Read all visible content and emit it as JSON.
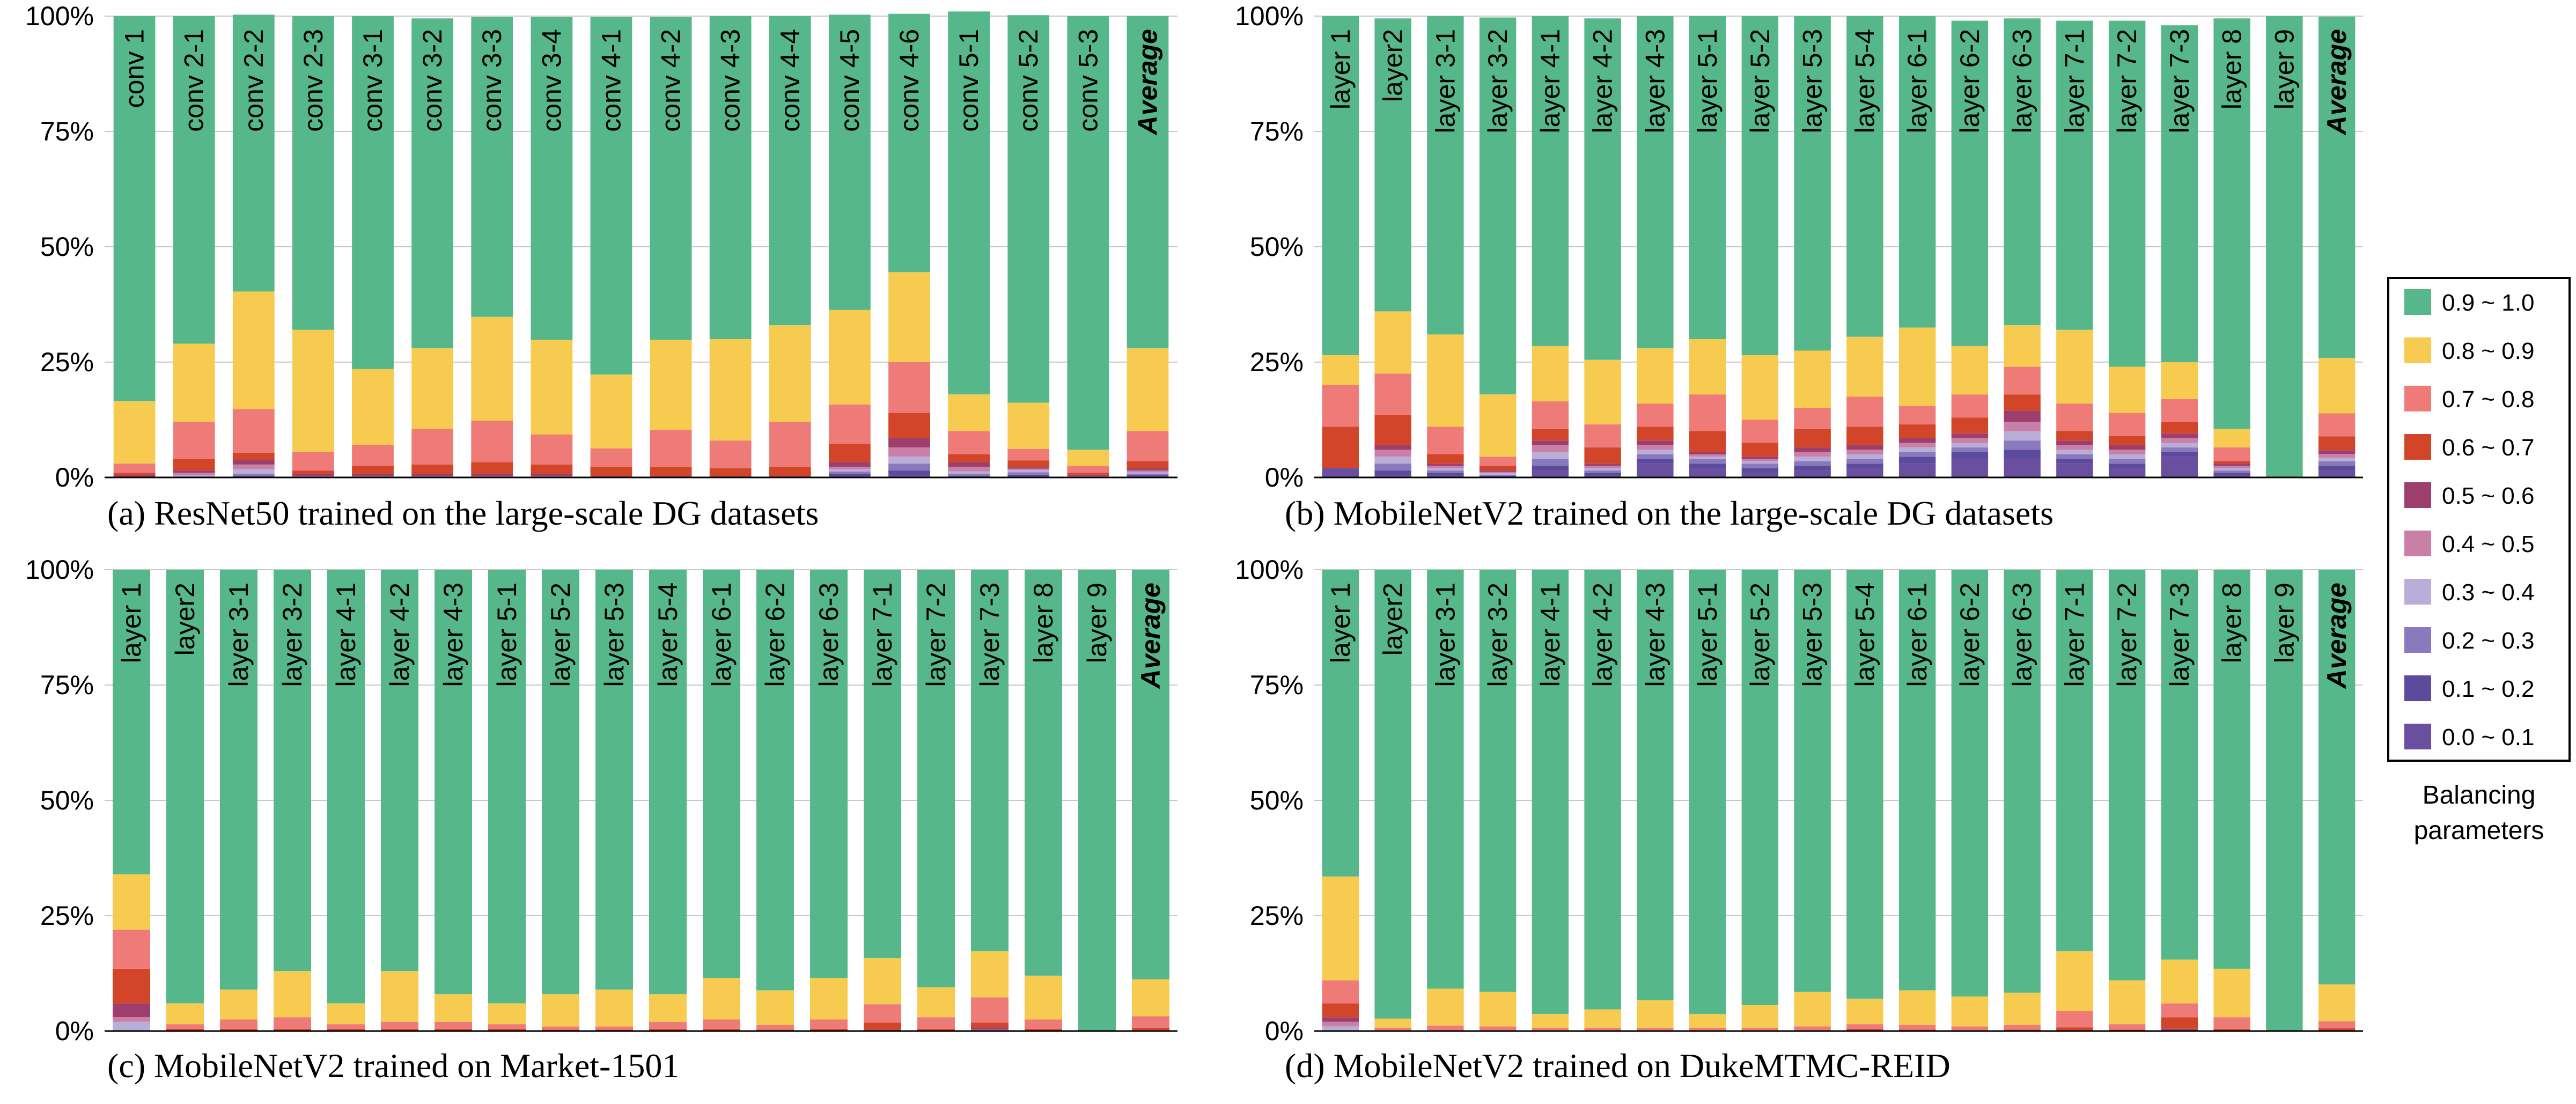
{
  "legend": {
    "title_line1": "Balancing",
    "title_line2": "parameters",
    "items": [
      {
        "label": "0.9 ~ 1.0",
        "color": "#55b78a"
      },
      {
        "label": "0.8 ~ 0.9",
        "color": "#f7cb4f"
      },
      {
        "label": "0.7 ~ 0.8",
        "color": "#ef7b78"
      },
      {
        "label": "0.6 ~ 0.7",
        "color": "#d24529"
      },
      {
        "label": "0.5 ~ 0.6",
        "color": "#9e3e6c"
      },
      {
        "label": "0.4 ~ 0.5",
        "color": "#c97fa6"
      },
      {
        "label": "0.3 ~ 0.4",
        "color": "#b9aed8"
      },
      {
        "label": "0.2 ~ 0.3",
        "color": "#8a79bd"
      },
      {
        "label": "0.1 ~ 0.2",
        "color": "#5c4a9d"
      },
      {
        "label": "0.0 ~ 0.1",
        "color": "#6a4fa0"
      }
    ]
  },
  "chart_data": [
    {
      "type": "bar",
      "stacked": true,
      "title": "(a) ResNet50 trained on the large-scale DG datasets",
      "ylim": [
        0,
        100
      ],
      "yticks": [
        "0%",
        "25%",
        "50%",
        "75%",
        "100%"
      ],
      "categories": [
        "conv 1",
        "conv 2-1",
        "conv 2-2",
        "conv 2-3",
        "conv 3-1",
        "conv 3-2",
        "conv 3-3",
        "conv 3-4",
        "conv 4-1",
        "conv 4-2",
        "conv 4-3",
        "conv 4-4",
        "conv 4-5",
        "conv 4-6",
        "conv 5-1",
        "conv 5-2",
        "conv 5-3",
        "Average"
      ],
      "series": [
        {
          "name": "0.0 ~ 0.1",
          "values": [
            0,
            0,
            0,
            0,
            0,
            0,
            0,
            0,
            0,
            0,
            0,
            0,
            0.3,
            0.5,
            0,
            0.3,
            0,
            0.2
          ]
        },
        {
          "name": "0.1 ~ 0.2",
          "values": [
            0,
            0,
            0.3,
            0,
            0,
            0,
            0,
            0,
            0,
            0,
            0,
            0,
            0.5,
            1,
            0.3,
            0.3,
            0,
            0.3
          ]
        },
        {
          "name": "0.2 ~ 0.3",
          "values": [
            0,
            0,
            0.5,
            0,
            0,
            0,
            0,
            0,
            0,
            0,
            0,
            0,
            0.5,
            1.5,
            0.5,
            0.5,
            0,
            0.3
          ]
        },
        {
          "name": "0.3 ~ 0.4",
          "values": [
            0,
            0.5,
            1,
            0,
            0,
            0,
            0,
            0,
            0,
            0,
            0,
            0,
            0.5,
            1.5,
            0.5,
            0.5,
            0,
            0.3
          ]
        },
        {
          "name": "0.4 ~ 0.5",
          "values": [
            0,
            0.5,
            1,
            0.3,
            0.3,
            0.3,
            0.3,
            0.3,
            0,
            0,
            0,
            0,
            0.5,
            2,
            1,
            0.3,
            0.3,
            0.4
          ]
        },
        {
          "name": "0.5 ~ 0.6",
          "values": [
            0.5,
            0.5,
            1,
            0.5,
            0.5,
            0.5,
            0.5,
            0.5,
            0.3,
            0.3,
            0.3,
            0.3,
            1,
            2,
            1,
            0.3,
            0.3,
            0.5
          ]
        },
        {
          "name": "0.6 ~ 0.7",
          "values": [
            0.5,
            2.5,
            1.5,
            0.7,
            1.7,
            2,
            2.5,
            2,
            2,
            2,
            1.7,
            2,
            4,
            5.5,
            1.7,
            1.5,
            0.4,
            1.5
          ]
        },
        {
          "name": "0.7 ~ 0.8",
          "values": [
            2,
            8,
            9.5,
            4,
            4.5,
            7.7,
            9,
            6.5,
            4,
            8,
            6,
            9.7,
            8.5,
            11,
            5,
            2.5,
            1.5,
            6.5
          ]
        },
        {
          "name": "0.8 ~ 0.9",
          "values": [
            13.5,
            17,
            25.5,
            26.5,
            16.5,
            17.5,
            22.5,
            20.5,
            16,
            19.5,
            22,
            21,
            20.5,
            19.5,
            8,
            10,
            3.5,
            18
          ]
        },
        {
          "name": "0.9 ~ 1.0",
          "values": [
            83.5,
            71,
            60,
            68,
            76.5,
            71.5,
            65,
            70,
            77.5,
            70,
            70,
            67,
            64,
            56,
            83,
            84,
            94,
            72
          ]
        }
      ]
    },
    {
      "type": "bar",
      "stacked": true,
      "title": "(b) MobileNetV2 trained on the large-scale DG datasets",
      "ylim": [
        0,
        100
      ],
      "yticks": [
        "0%",
        "25%",
        "50%",
        "75%",
        "100%"
      ],
      "categories": [
        "layer 1",
        "layer2",
        "layer 3-1",
        "layer 3-2",
        "layer 4-1",
        "layer 4-2",
        "layer 4-3",
        "layer 5-1",
        "layer 5-2",
        "layer 5-3",
        "layer 5-4",
        "layer 6-1",
        "layer 6-2",
        "layer 6-3",
        "layer 7-1",
        "layer 7-2",
        "layer 7-3",
        "layer 8",
        "layer 9",
        "Average"
      ],
      "series": [
        {
          "name": "0.0 ~ 0.1",
          "values": [
            2,
            0.5,
            0.5,
            0,
            1.5,
            0.5,
            3,
            2,
            1,
            1.5,
            2,
            3,
            4,
            4,
            3,
            2,
            4.5,
            0.5,
            0,
            1.5
          ]
        },
        {
          "name": "0.1 ~ 0.2",
          "values": [
            0,
            1,
            0.5,
            0.3,
            1,
            0.5,
            1,
            1,
            1,
            1,
            1,
            1.5,
            1.5,
            2,
            1,
            1,
            1,
            0.5,
            0,
            1
          ]
        },
        {
          "name": "0.2 ~ 0.3",
          "values": [
            0,
            1.5,
            0.5,
            0.3,
            1.5,
            0.5,
            1,
            1,
            1,
            1,
            1,
            1,
            1,
            2,
            1,
            1,
            1,
            0.5,
            0,
            1
          ]
        },
        {
          "name": "0.3 ~ 0.4",
          "values": [
            0,
            1.5,
            0.5,
            0.3,
            1.5,
            0.5,
            1,
            0.5,
            0.5,
            1,
            1,
            1,
            1,
            2,
            1,
            1,
            1,
            0.5,
            0,
            0.8
          ]
        },
        {
          "name": "0.4 ~ 0.5",
          "values": [
            0,
            1.5,
            0.5,
            0.3,
            1.5,
            0.5,
            1,
            0.5,
            0.5,
            1,
            1,
            1,
            1,
            2,
            1,
            1,
            1,
            0.5,
            0,
            0.8
          ]
        },
        {
          "name": "0.5 ~ 0.6",
          "values": [
            0,
            1,
            0.5,
            0.3,
            1,
            0.5,
            1,
            0.5,
            0.5,
            1,
            1,
            1,
            1,
            2.5,
            1,
            1,
            1,
            0.5,
            0,
            0.8
          ]
        },
        {
          "name": "0.6 ~ 0.7",
          "values": [
            9,
            6.5,
            2,
            1,
            2.5,
            3.5,
            3,
            4.5,
            3,
            4,
            4,
            3,
            3.5,
            3.5,
            2,
            2,
            2.5,
            0.5,
            0,
            3
          ]
        },
        {
          "name": "0.7 ~ 0.8",
          "values": [
            9,
            9,
            6,
            2,
            6,
            5,
            5,
            8,
            5,
            4.5,
            6.5,
            4,
            5,
            6,
            6,
            5,
            5,
            3,
            0,
            5
          ]
        },
        {
          "name": "0.8 ~ 0.9",
          "values": [
            6.5,
            13.5,
            20,
            13.5,
            12,
            14,
            12,
            12,
            14,
            12.5,
            13,
            17,
            10.5,
            9,
            16,
            10,
            8,
            4,
            0,
            12
          ]
        },
        {
          "name": "0.9 ~ 1.0",
          "values": [
            73.5,
            63.5,
            69,
            81.7,
            71.5,
            74,
            72,
            70,
            73.5,
            72.5,
            69.5,
            67.5,
            70.5,
            66.5,
            67,
            75,
            73,
            89,
            100,
            74
          ]
        }
      ]
    },
    {
      "type": "bar",
      "stacked": true,
      "title": "(c) MobileNetV2 trained on Market-1501",
      "ylim": [
        0,
        100
      ],
      "yticks": [
        "0%",
        "25%",
        "50%",
        "75%",
        "100%"
      ],
      "categories": [
        "layer 1",
        "layer2",
        "layer 3-1",
        "layer 3-2",
        "layer 4-1",
        "layer 4-2",
        "layer 4-3",
        "layer 5-1",
        "layer 5-2",
        "layer 5-3",
        "layer 5-4",
        "layer 6-1",
        "layer 6-2",
        "layer 6-3",
        "layer 7-1",
        "layer 7-2",
        "layer 7-3",
        "layer 8",
        "layer 9",
        "Average"
      ],
      "series": [
        {
          "name": "0.0 ~ 0.1",
          "values": [
            0,
            0,
            0,
            0,
            0,
            0,
            0,
            0,
            0,
            0,
            0,
            0,
            0,
            0,
            0,
            0,
            0,
            0,
            0,
            0
          ]
        },
        {
          "name": "0.1 ~ 0.2",
          "values": [
            0,
            0,
            0,
            0,
            0,
            0,
            0,
            0,
            0,
            0,
            0,
            0,
            0,
            0,
            0,
            0,
            0,
            0,
            0,
            0
          ]
        },
        {
          "name": "0.2 ~ 0.3",
          "values": [
            0,
            0,
            0,
            0,
            0,
            0,
            0,
            0,
            0,
            0,
            0,
            0,
            0,
            0,
            0,
            0,
            0,
            0,
            0,
            0
          ]
        },
        {
          "name": "0.3 ~ 0.4",
          "values": [
            2,
            0,
            0,
            0,
            0,
            0,
            0,
            0,
            0,
            0,
            0,
            0,
            0,
            0,
            0,
            0,
            0,
            0,
            0,
            0
          ]
        },
        {
          "name": "0.4 ~ 0.5",
          "values": [
            1,
            0,
            0,
            0,
            0,
            0,
            0,
            0,
            0,
            0,
            0,
            0,
            0,
            0,
            0,
            0,
            0.3,
            0,
            0,
            0
          ]
        },
        {
          "name": "0.5 ~ 0.6",
          "values": [
            3,
            0,
            0,
            0,
            0,
            0,
            0,
            0,
            0,
            0,
            0,
            0,
            0,
            0,
            0.3,
            0,
            0.5,
            0,
            0,
            0.2
          ]
        },
        {
          "name": "0.6 ~ 0.7",
          "values": [
            7.5,
            0.5,
            0.5,
            0.5,
            0.5,
            0.5,
            0.5,
            0.5,
            0.3,
            0.3,
            0.5,
            0.5,
            0.3,
            0.5,
            1.5,
            0.5,
            1,
            0.5,
            0,
            0.5
          ]
        },
        {
          "name": "0.7 ~ 0.8",
          "values": [
            8.5,
            1,
            2,
            2.5,
            1,
            1.5,
            1.5,
            1,
            0.7,
            0.7,
            1.5,
            2,
            1,
            2,
            4,
            2.5,
            5.5,
            2,
            0,
            2.5
          ]
        },
        {
          "name": "0.8 ~ 0.9",
          "values": [
            12,
            4.5,
            6.5,
            10,
            4.5,
            11,
            6,
            4.5,
            7,
            8,
            6,
            9,
            7.5,
            9,
            10,
            6.5,
            10,
            9.5,
            0,
            8
          ]
        },
        {
          "name": "0.9 ~ 1.0",
          "values": [
            66,
            94,
            91,
            87,
            94,
            87,
            92,
            94,
            92,
            91,
            92,
            88.5,
            91.2,
            88.5,
            84.2,
            90.5,
            82.7,
            88,
            100,
            88.8
          ]
        }
      ]
    },
    {
      "type": "bar",
      "stacked": true,
      "title": "(d) MobileNetV2 trained on DukeMTMC-REID",
      "ylim": [
        0,
        100
      ],
      "yticks": [
        "0%",
        "25%",
        "50%",
        "75%",
        "100%"
      ],
      "categories": [
        "layer 1",
        "layer2",
        "layer 3-1",
        "layer 3-2",
        "layer 4-1",
        "layer 4-2",
        "layer 4-3",
        "layer 5-1",
        "layer 5-2",
        "layer 5-3",
        "layer 5-4",
        "layer 6-1",
        "layer 6-2",
        "layer 6-3",
        "layer 7-1",
        "layer 7-2",
        "layer 7-3",
        "layer 8",
        "layer 9",
        "Average"
      ],
      "series": [
        {
          "name": "0.0 ~ 0.1",
          "values": [
            0,
            0,
            0,
            0,
            0,
            0,
            0,
            0,
            0,
            0,
            0,
            0,
            0,
            0,
            0,
            0,
            0,
            0,
            0,
            0
          ]
        },
        {
          "name": "0.1 ~ 0.2",
          "values": [
            0,
            0,
            0,
            0,
            0,
            0,
            0,
            0,
            0,
            0,
            0,
            0,
            0,
            0,
            0,
            0,
            0,
            0,
            0,
            0
          ]
        },
        {
          "name": "0.2 ~ 0.3",
          "values": [
            0,
            0,
            0,
            0,
            0,
            0,
            0,
            0,
            0,
            0,
            0,
            0,
            0,
            0,
            0,
            0,
            0,
            0,
            0,
            0
          ]
        },
        {
          "name": "0.3 ~ 0.4",
          "values": [
            1,
            0,
            0,
            0,
            0,
            0,
            0,
            0,
            0,
            0,
            0,
            0,
            0,
            0,
            0,
            0,
            0,
            0,
            0,
            0
          ]
        },
        {
          "name": "0.4 ~ 0.5",
          "values": [
            1,
            0,
            0,
            0,
            0,
            0,
            0,
            0,
            0,
            0,
            0,
            0,
            0,
            0,
            0,
            0,
            0,
            0,
            0,
            0
          ]
        },
        {
          "name": "0.5 ~ 0.6",
          "values": [
            1,
            0,
            0,
            0,
            0,
            0,
            0,
            0,
            0,
            0,
            0,
            0,
            0,
            0,
            0,
            0,
            0.5,
            0,
            0,
            0.1
          ]
        },
        {
          "name": "0.6 ~ 0.7",
          "values": [
            3,
            0.2,
            0.2,
            0.2,
            0.2,
            0.2,
            0.2,
            0.2,
            0.2,
            0.2,
            0.5,
            0.3,
            0.2,
            0.3,
            0.8,
            0.3,
            2.5,
            0.5,
            0,
            0.5
          ]
        },
        {
          "name": "0.7 ~ 0.8",
          "values": [
            5,
            0.5,
            1,
            0.8,
            0.5,
            0.5,
            0.5,
            0.5,
            0.5,
            0.8,
            1,
            1,
            0.8,
            1,
            3.5,
            1.2,
            3,
            2.5,
            0,
            1.5
          ]
        },
        {
          "name": "0.8 ~ 0.9",
          "values": [
            22.5,
            2,
            8,
            7.5,
            3,
            4,
            6,
            3,
            5,
            7.5,
            5.5,
            7.5,
            6.5,
            7,
            13,
            9.5,
            9.5,
            10.5,
            0,
            8
          ]
        },
        {
          "name": "0.9 ~ 1.0",
          "values": [
            66.5,
            97.3,
            90.8,
            91.5,
            96.3,
            95.3,
            93.3,
            96.3,
            94.3,
            91.5,
            93,
            91.2,
            92.5,
            91.7,
            82.7,
            89,
            84.5,
            86.5,
            100,
            89.9
          ]
        }
      ]
    }
  ]
}
